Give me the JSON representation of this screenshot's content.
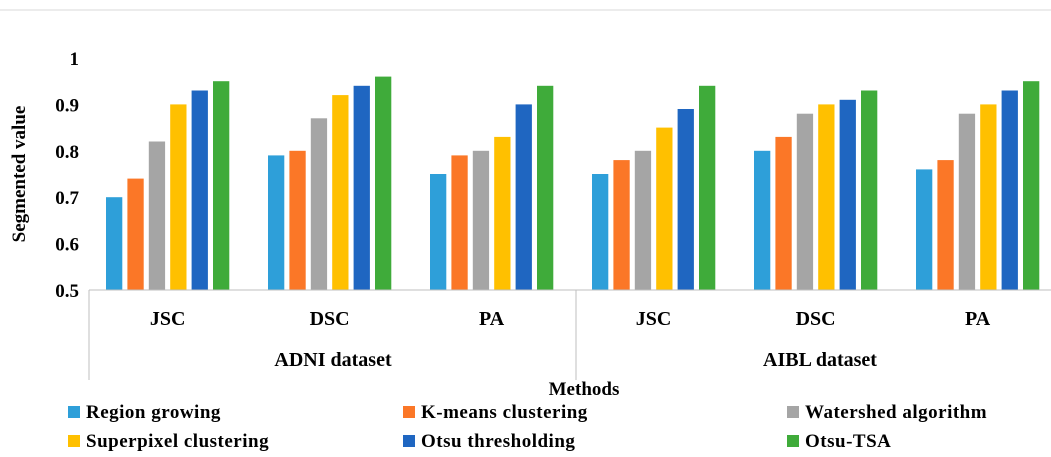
{
  "chart_data": {
    "type": "bar",
    "title": "",
    "xlabel": "Methods",
    "ylabel": "Segmented value",
    "ylim": [
      0.5,
      1
    ],
    "yticks": [
      "0.5",
      "0.6",
      "0.7",
      "0.8",
      "0.9",
      "1"
    ],
    "groups": [
      {
        "name": "ADNI dataset",
        "categories": [
          "JSC",
          "DSC",
          "PA"
        ]
      },
      {
        "name": "AIBL dataset",
        "categories": [
          "JSC",
          "DSC",
          "PA"
        ]
      }
    ],
    "categories": [
      "JSC",
      "DSC",
      "PA",
      "JSC",
      "DSC",
      "PA"
    ],
    "series": [
      {
        "name": "Region growing",
        "color": "#2e9fd9",
        "values": [
          0.7,
          0.79,
          0.75,
          0.75,
          0.8,
          0.76
        ]
      },
      {
        "name": "K-means clustering",
        "color": "#fb7727",
        "values": [
          0.74,
          0.8,
          0.79,
          0.78,
          0.83,
          0.78
        ]
      },
      {
        "name": "Watershed algorithm",
        "color": "#a5a5a5",
        "values": [
          0.82,
          0.87,
          0.8,
          0.8,
          0.88,
          0.88
        ]
      },
      {
        "name": "Superpixel clustering",
        "color": "#ffc000",
        "values": [
          0.9,
          0.92,
          0.83,
          0.85,
          0.9,
          0.9
        ]
      },
      {
        "name": "Otsu thresholding",
        "color": "#1f66c1",
        "values": [
          0.93,
          0.94,
          0.9,
          0.89,
          0.91,
          0.93
        ]
      },
      {
        "name": "Otsu-TSA",
        "color": "#3fab3a",
        "values": [
          0.95,
          0.96,
          0.94,
          0.94,
          0.93,
          0.95
        ]
      }
    ],
    "grid": false,
    "legend_position": "bottom"
  }
}
